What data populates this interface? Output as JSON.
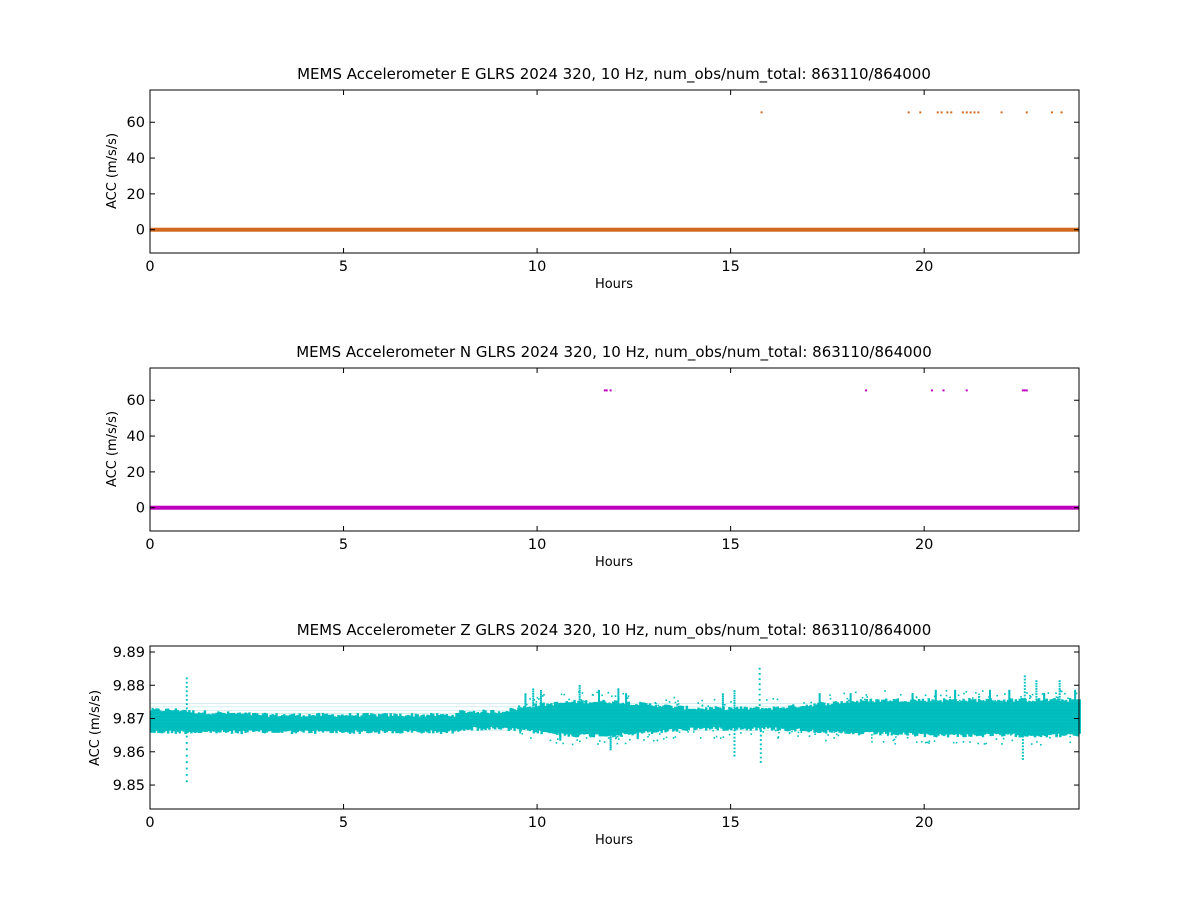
{
  "chart_data": [
    {
      "type": "scatter",
      "title": "MEMS Accelerometer E GLRS 2024 320, 10 Hz, num_obs/num_total: 863110/864000",
      "xlabel": "Hours",
      "ylabel": "ACC (m/s/s)",
      "xlim": [
        0,
        24
      ],
      "ylim": [
        -13,
        78
      ],
      "xticks": [
        "0",
        "5",
        "10",
        "15",
        "20"
      ],
      "yticks": [
        "0",
        "20",
        "40",
        "60"
      ],
      "color": "#d2691e",
      "grid": false,
      "series": [
        {
          "x": [
            0,
            24
          ],
          "y": [
            0,
            0
          ],
          "kind": "baseline"
        },
        {
          "x": [
            15.8,
            19.6,
            19.9,
            20.35,
            20.45,
            20.6,
            20.7,
            21.0,
            21.1,
            21.2,
            21.3,
            21.4,
            22.0,
            22.65,
            23.3,
            23.55
          ],
          "y": [
            65.5,
            65.5,
            65.5,
            65.5,
            65.5,
            65.5,
            65.5,
            65.5,
            65.5,
            65.5,
            65.5,
            65.5,
            65.5,
            65.5,
            65.5,
            65.5
          ],
          "kind": "points"
        }
      ]
    },
    {
      "type": "scatter",
      "title": "MEMS Accelerometer N GLRS 2024 320, 10 Hz, num_obs/num_total: 863110/864000",
      "xlabel": "Hours",
      "ylabel": "ACC (m/s/s)",
      "xlim": [
        0,
        24
      ],
      "ylim": [
        -13,
        78
      ],
      "xticks": [
        "0",
        "5",
        "10",
        "15",
        "20"
      ],
      "yticks": [
        "0",
        "20",
        "40",
        "60"
      ],
      "color": "#bf00bf",
      "grid": false,
      "series": [
        {
          "x": [
            0,
            24
          ],
          "y": [
            0,
            0
          ],
          "kind": "baseline"
        },
        {
          "x": [
            11.75,
            11.8,
            11.9,
            18.5,
            20.2,
            20.5,
            21.1,
            22.55,
            22.6,
            22.65
          ],
          "y": [
            65.5,
            65.5,
            65.5,
            65.5,
            65.5,
            65.5,
            65.5,
            65.5,
            65.5,
            65.5
          ],
          "kind": "points"
        }
      ]
    },
    {
      "type": "scatter",
      "title": "MEMS Accelerometer Z GLRS 2024 320, 10 Hz, num_obs/num_total: 863110/864000",
      "xlabel": "Hours",
      "ylabel": "ACC (m/s/s)",
      "xlim": [
        0,
        24
      ],
      "ylim": [
        9.8428,
        9.8918
      ],
      "xticks": [
        "0",
        "5",
        "10",
        "15",
        "20"
      ],
      "yticks": [
        "9.85",
        "9.86",
        "9.87",
        "9.88",
        "9.89"
      ],
      "color": "#00bfbf",
      "grid": false,
      "band": {
        "x": [
          0,
          0.9,
          1.0,
          3,
          5,
          7,
          7.9,
          8.0,
          9,
          9.5,
          10,
          11,
          12,
          13,
          14,
          15,
          15.5,
          16,
          17,
          18,
          19,
          20,
          21,
          22,
          23,
          24
        ],
        "lower": [
          9.8665,
          9.8665,
          9.8665,
          9.8665,
          9.8665,
          9.8665,
          9.8665,
          9.8675,
          9.8675,
          9.867,
          9.8665,
          9.8655,
          9.8655,
          9.8665,
          9.8675,
          9.8675,
          9.8675,
          9.8675,
          9.867,
          9.866,
          9.866,
          9.8655,
          9.8655,
          9.8655,
          9.8655,
          9.8655
        ],
        "upper": [
          9.872,
          9.872,
          9.8715,
          9.8705,
          9.8705,
          9.8705,
          9.8705,
          9.8715,
          9.8715,
          9.8725,
          9.8735,
          9.8745,
          9.8745,
          9.8735,
          9.8725,
          9.8725,
          9.8725,
          9.8725,
          9.8735,
          9.8745,
          9.875,
          9.875,
          9.875,
          9.875,
          9.875,
          9.875
        ]
      },
      "spikes": {
        "x": [
          0.95,
          0.95,
          9.7,
          9.9,
          10.1,
          10.6,
          11.1,
          11.6,
          11.9,
          12.1,
          12.3,
          12.6,
          14.8,
          15.1,
          15.1,
          15.75,
          15.78,
          17.3,
          18.1,
          19.7,
          20.3,
          20.8,
          21.7,
          22.2,
          22.55,
          22.6,
          22.9,
          23.1,
          23.5,
          23.9
        ],
        "y": [
          9.8825,
          9.8505,
          9.8775,
          9.879,
          9.8785,
          9.8635,
          9.88,
          9.8785,
          9.8605,
          9.879,
          9.8775,
          9.864,
          9.8775,
          9.8785,
          9.8585,
          9.8855,
          9.8565,
          9.8775,
          9.8775,
          9.8775,
          9.8785,
          9.8785,
          9.8785,
          9.8785,
          9.8575,
          9.883,
          9.8815,
          9.8775,
          9.8815,
          9.8785
        ]
      }
    }
  ]
}
